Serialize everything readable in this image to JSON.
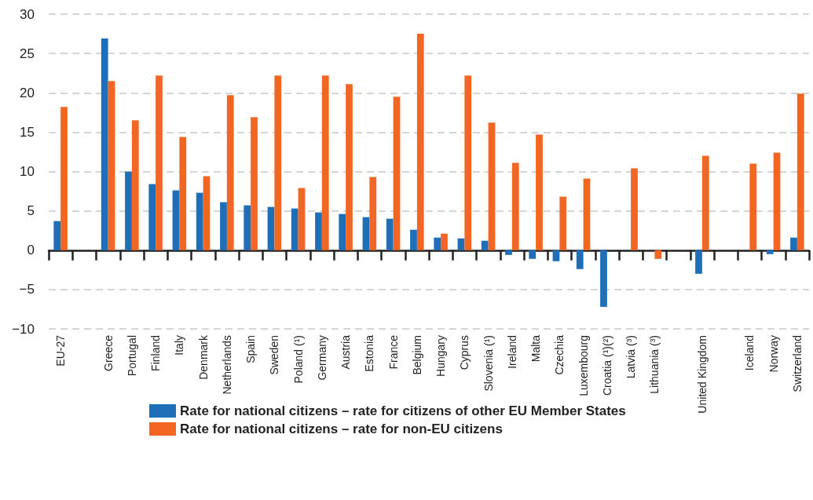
{
  "chart_data": {
    "type": "bar",
    "categories": [
      "EU-27",
      null,
      "Greece",
      "Portugal",
      "Finland",
      "Italy",
      "Denmark",
      "Netherlands",
      "Spain",
      "Sweden",
      "Poland (¹)",
      "Germany",
      "Austria",
      "Estonia",
      "France",
      "Belgium",
      "Hungary",
      "Cyprus",
      "Slovenia (¹)",
      "Ireland",
      "Malta",
      "Czechia",
      "Luxembourg",
      "Croatia (¹)(²)",
      "Latvia (³)",
      "Lithuania (³)",
      null,
      "United Kingdom",
      null,
      "Iceland",
      "Norway",
      "Switzerland"
    ],
    "series": [
      {
        "name": "Rate for national citizens – rate for citizens of other EU Member States",
        "color": "#1f6fb8",
        "values": [
          3.7,
          null,
          26.9,
          10.0,
          8.4,
          7.6,
          7.3,
          6.1,
          5.7,
          5.5,
          5.3,
          4.8,
          4.6,
          4.2,
          4.0,
          2.6,
          1.6,
          1.5,
          1.2,
          -0.6,
          -1.1,
          -1.4,
          -2.4,
          -7.2,
          null,
          null,
          null,
          -3.0,
          null,
          null,
          -0.5,
          1.6
        ]
      },
      {
        "name": "Rate for national citizens – rate for non-EU citizens",
        "color": "#f26522",
        "values": [
          18.2,
          null,
          21.5,
          16.5,
          22.2,
          14.4,
          9.4,
          19.7,
          16.9,
          22.2,
          7.9,
          22.2,
          21.1,
          9.3,
          19.5,
          27.5,
          2.1,
          22.2,
          16.2,
          11.1,
          14.7,
          6.8,
          9.1,
          null,
          10.4,
          -1.1,
          null,
          12.0,
          null,
          11.0,
          12.4,
          19.9
        ]
      }
    ],
    "ylim": [
      -10,
      30
    ],
    "yticks": [
      -10,
      -5,
      0,
      5,
      10,
      15,
      20,
      25,
      30
    ],
    "grid": "y",
    "legend": "bottom"
  }
}
